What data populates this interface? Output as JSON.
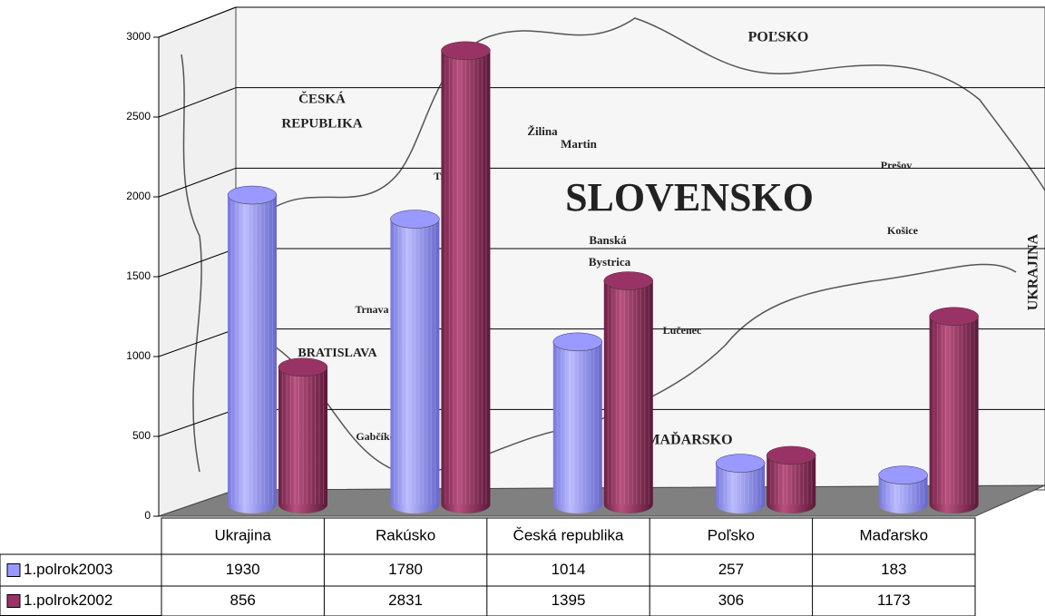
{
  "chart_data": {
    "type": "bar",
    "categories": [
      "Ukrajina",
      "Rakúsko",
      "Česká republika",
      "Poľsko",
      "Maďarsko"
    ],
    "series": [
      {
        "name": "1.polrok2003",
        "color": "#9999ff",
        "values": [
          1930,
          1780,
          1014,
          257,
          183
        ]
      },
      {
        "name": "1.polrok2002",
        "color": "#993366",
        "values": [
          856,
          2831,
          1395,
          306,
          1173
        ]
      }
    ],
    "ylim": [
      0,
      3000
    ],
    "yticks": [
      0,
      500,
      1000,
      1500,
      2000,
      2500,
      3000
    ],
    "grid": true,
    "data_table": true,
    "annotations": [
      "POĽSKO",
      "ČESKÁ",
      "REPUBLIKA",
      "Žilina",
      "Martin",
      "SLOVENSKO",
      "Prešov",
      "Košice",
      "Banská",
      "Bystrica",
      "Trenčín",
      "Trnava",
      "BRATISLAVA",
      "Lučenec",
      "Gabčíkovo",
      "MAĎARSKO",
      "UKRAJINA"
    ]
  }
}
